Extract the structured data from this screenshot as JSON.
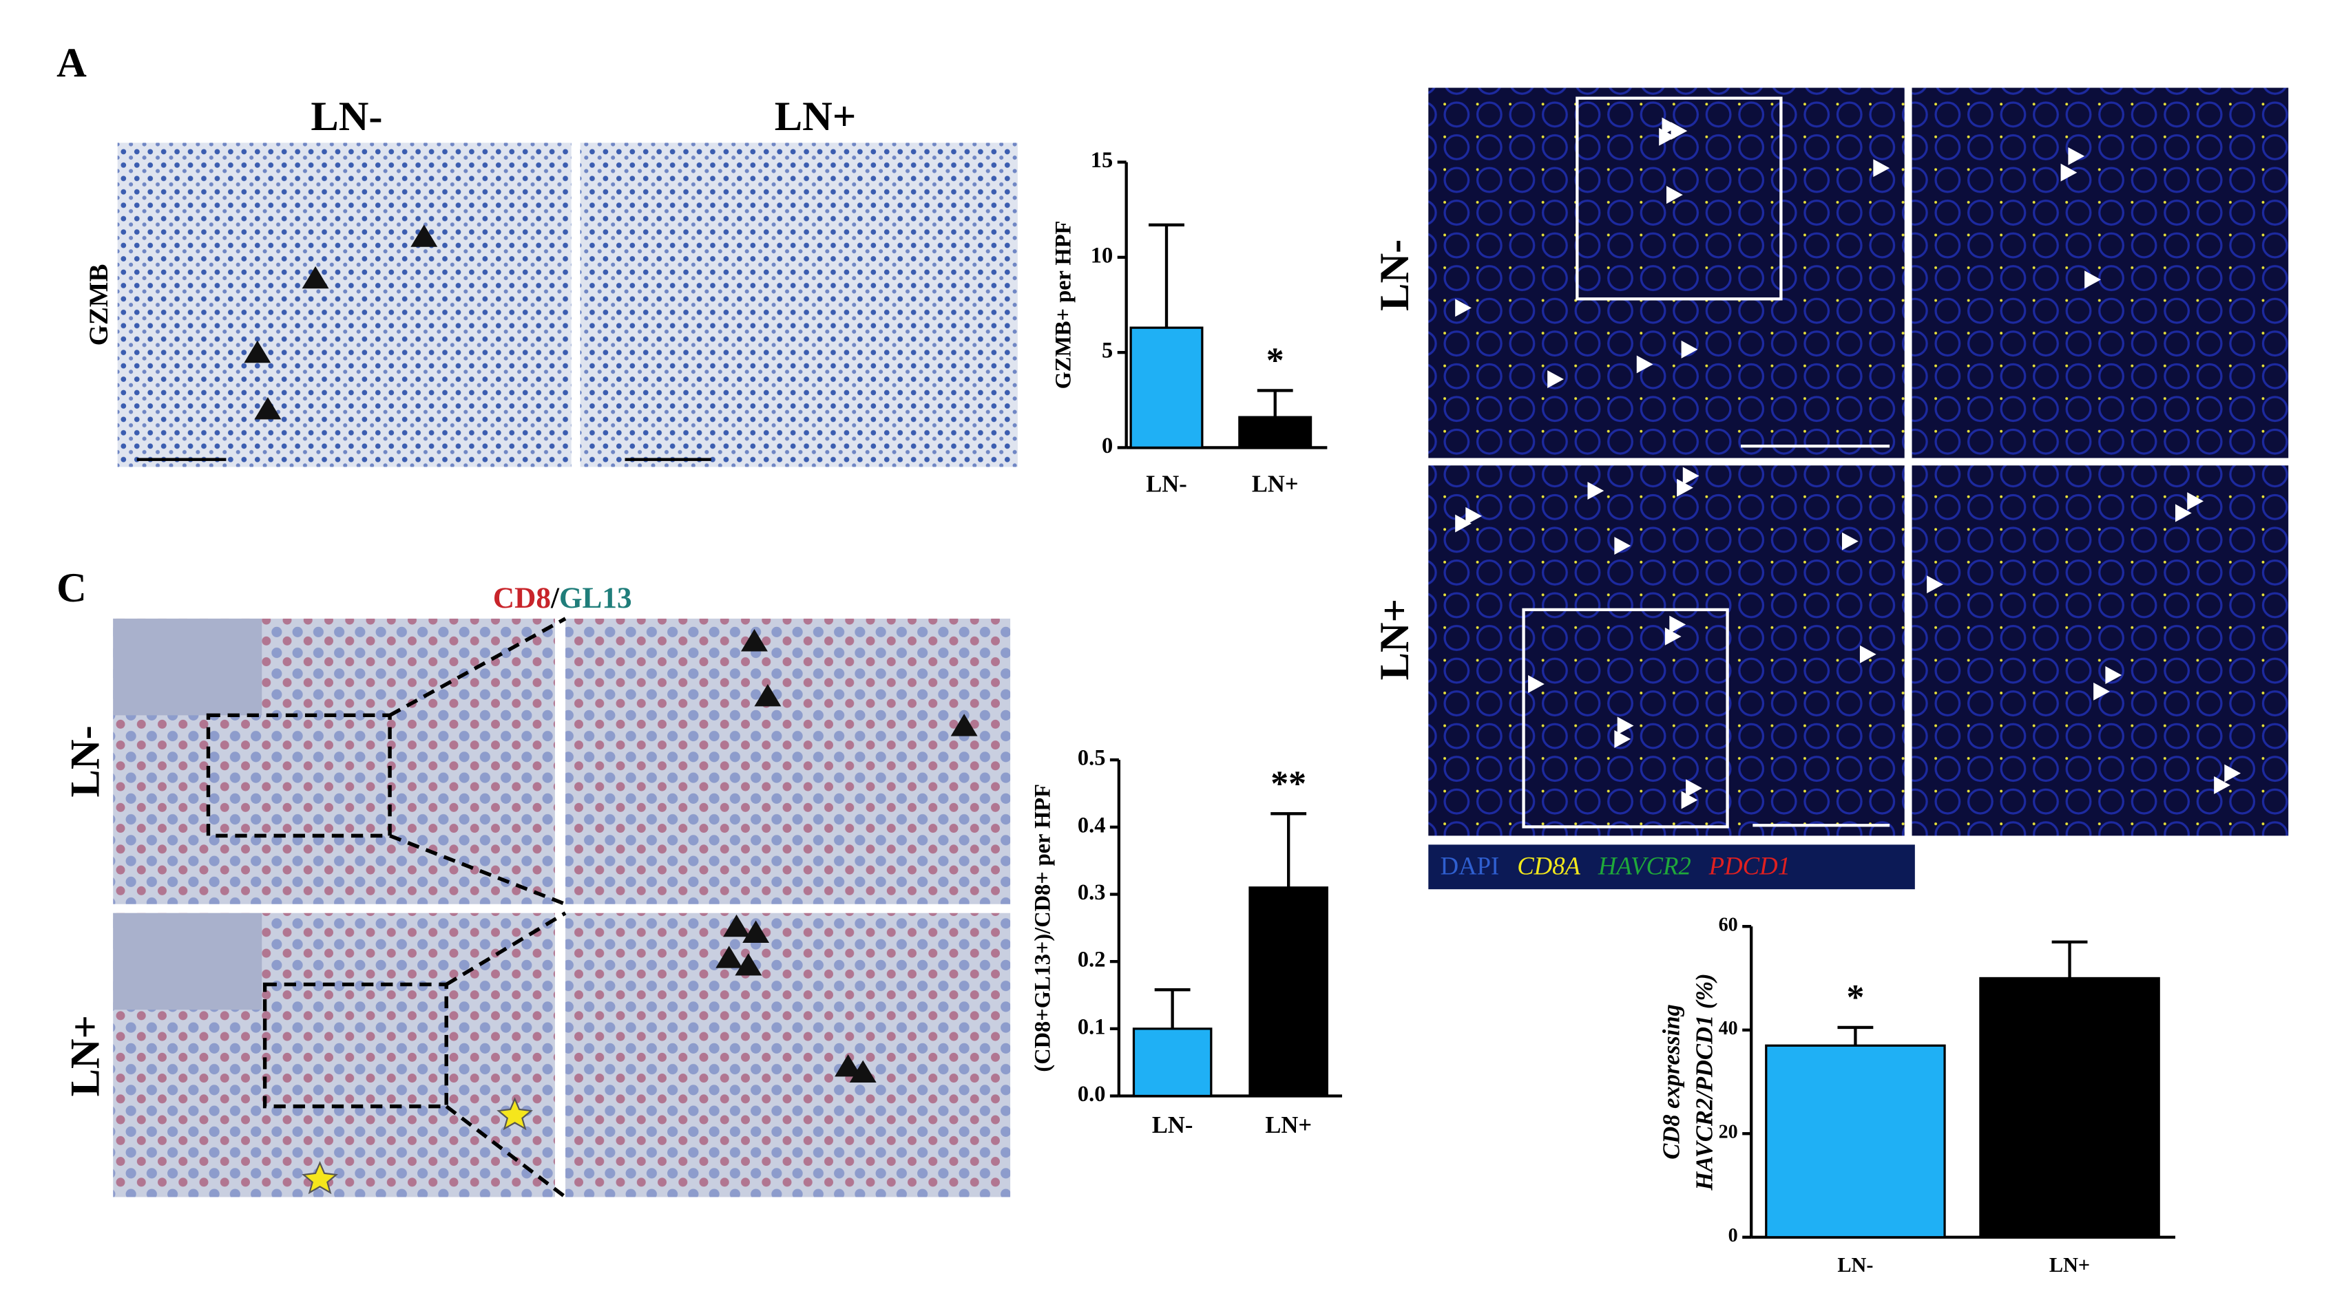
{
  "panels": {
    "a": {
      "label": "A",
      "columns": [
        "LN-",
        "LN+"
      ],
      "row": "GZMB"
    },
    "c": {
      "label": "C",
      "title_parts": [
        "CD8",
        "/",
        "GL13"
      ],
      "rows": [
        "LN-",
        "LN+"
      ]
    },
    "b": {
      "rows": [
        "LN-",
        "LN+"
      ],
      "legend": [
        {
          "name": "DAPI",
          "color": "#2f5fd0"
        },
        {
          "name": "CD8A",
          "color": "#f2e81c"
        },
        {
          "name": "HAVCR2",
          "color": "#1fa83a"
        },
        {
          "name": "PDCD1",
          "color": "#e02020"
        }
      ]
    }
  },
  "chart_data": [
    {
      "type": "bar",
      "ylabel": [
        "GZMB+ per HPF"
      ],
      "categories": [
        "LN-",
        "LN+"
      ],
      "values": [
        6.3,
        1.6
      ],
      "errors": [
        5.4,
        1.4
      ],
      "colors": [
        "#1fb0f5",
        "#000000"
      ],
      "ylim": [
        0,
        15
      ],
      "yticks": [
        0,
        5,
        10,
        15
      ],
      "annotations": [
        null,
        "*"
      ]
    },
    {
      "type": "bar",
      "ylabel": [
        "(CD8+GL13+)/CD8+ per HPF"
      ],
      "categories": [
        "LN-",
        "LN+"
      ],
      "values": [
        0.1,
        0.31
      ],
      "errors": [
        0.058,
        0.11
      ],
      "colors": [
        "#1fb0f5",
        "#000000"
      ],
      "ylim": [
        0,
        0.5
      ],
      "yticks": [
        {
          "value": 0,
          "label": "0.0"
        },
        0.1,
        0.2,
        0.3,
        0.4,
        0.5
      ],
      "annotations": [
        null,
        "**"
      ]
    },
    {
      "type": "bar",
      "ylabel": [
        "CD8 expressing",
        "HAVCR2/PDCD1 (%)"
      ],
      "categories": [
        "LN-",
        "LN+"
      ],
      "values": [
        37,
        50
      ],
      "errors": [
        3.5,
        7
      ],
      "colors": [
        "#1fb0f5",
        "#000000"
      ],
      "ylim": [
        0,
        60
      ],
      "yticks": [
        0,
        20,
        40,
        60
      ],
      "annotations": [
        "*",
        null
      ]
    }
  ]
}
